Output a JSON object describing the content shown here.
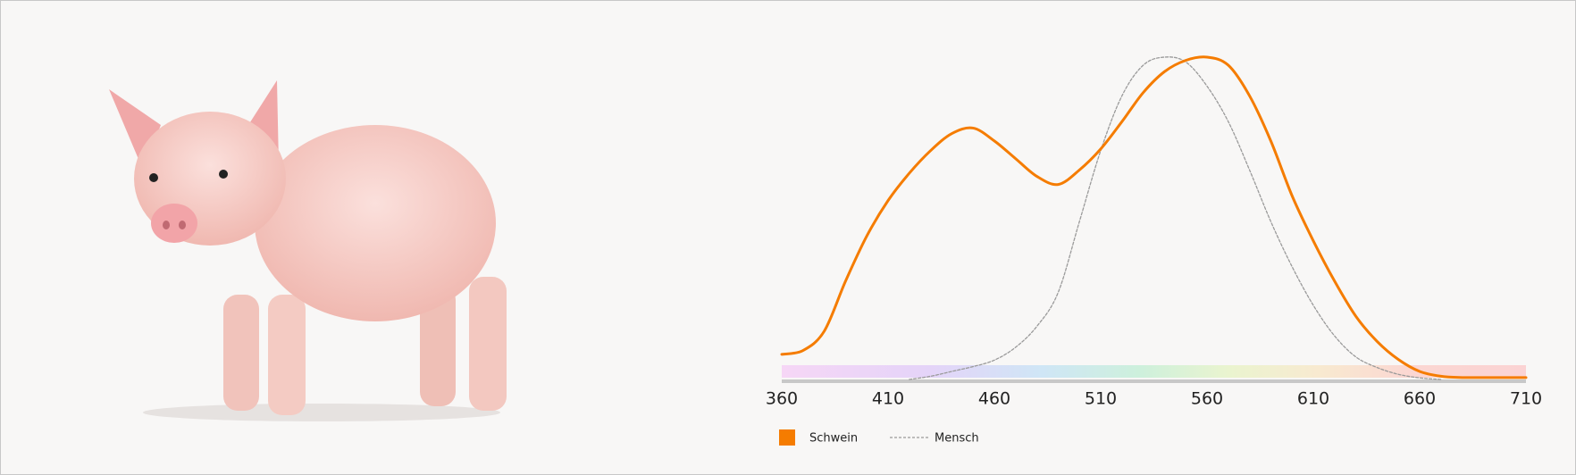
{
  "chart_data": {
    "type": "line",
    "x": [
      360,
      370,
      380,
      390,
      400,
      410,
      420,
      430,
      440,
      450,
      460,
      470,
      480,
      490,
      500,
      510,
      520,
      530,
      540,
      550,
      560,
      570,
      580,
      590,
      600,
      610,
      620,
      630,
      640,
      650,
      660,
      670,
      680,
      690,
      700,
      710
    ],
    "series": [
      {
        "name": "Schwein",
        "color": "#f57c00",
        "dashed": false,
        "values": [
          0.078,
          0.09,
          0.15,
          0.305,
          0.445,
          0.555,
          0.64,
          0.71,
          0.763,
          0.78,
          0.74,
          0.685,
          0.63,
          0.605,
          0.65,
          0.715,
          0.8,
          0.89,
          0.955,
          0.99,
          1.0,
          0.975,
          0.88,
          0.74,
          0.57,
          0.43,
          0.305,
          0.196,
          0.118,
          0.062,
          0.025,
          0.01,
          0.006,
          0.006,
          0.006,
          0.006
        ]
      },
      {
        "name": "Mensch",
        "color": "#9a9a9a",
        "dashed": true,
        "values": [
          null,
          null,
          null,
          null,
          null,
          null,
          0,
          0.01,
          0.025,
          0.04,
          0.06,
          0.1,
          0.165,
          0.27,
          0.49,
          0.71,
          0.88,
          0.975,
          1.0,
          0.985,
          0.91,
          0.8,
          0.65,
          0.49,
          0.35,
          0.23,
          0.135,
          0.07,
          0.037,
          0.016,
          0.005,
          0,
          null,
          null,
          null,
          null
        ]
      }
    ],
    "xlim": [
      360,
      710
    ],
    "xticks": [
      360,
      410,
      460,
      510,
      560,
      610,
      660,
      710
    ],
    "ylim": [
      0,
      1
    ]
  }
}
